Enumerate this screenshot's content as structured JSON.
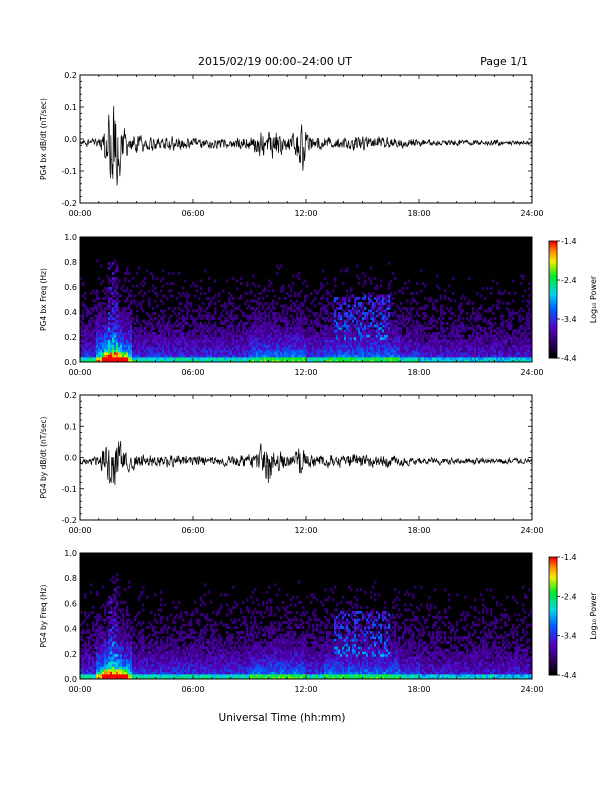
{
  "header": {
    "title": "2015/02/19  00:00–24:00 UT",
    "page": "Page 1/1"
  },
  "footer": {
    "xlabel": "Universal Time (hh:mm)"
  },
  "chart_data": [
    {
      "type": "line",
      "ylabel": "PG4 bx dB/dt (nT/sec)",
      "xlim": [
        0,
        24
      ],
      "ylim": [
        -0.2,
        0.2
      ],
      "xticks": [
        "00:00",
        "06:00",
        "12:00",
        "18:00",
        "24:00"
      ],
      "yticks": [
        "-0.2",
        "-0.1",
        "0.0",
        "0.1",
        "0.2"
      ],
      "envelope": {
        "x": [
          0,
          1,
          1.3,
          1.6,
          1.8,
          2.0,
          2.3,
          2.8,
          4,
          6,
          8,
          9.2,
          9.6,
          10,
          10.4,
          11,
          11.4,
          11.7,
          12,
          13,
          15,
          16,
          18,
          20,
          22,
          24
        ],
        "max": [
          0.012,
          0.02,
          0.06,
          0.12,
          0.19,
          0.12,
          0.06,
          0.035,
          0.03,
          0.025,
          0.02,
          0.03,
          0.05,
          0.07,
          0.06,
          0.025,
          0.04,
          0.12,
          0.04,
          0.025,
          0.03,
          0.025,
          0.015,
          0.012,
          0.012,
          0.01
        ],
        "min": [
          -0.012,
          -0.02,
          -0.08,
          -0.16,
          -0.2,
          -0.15,
          -0.07,
          -0.04,
          -0.03,
          -0.025,
          -0.02,
          -0.03,
          -0.06,
          -0.09,
          -0.06,
          -0.025,
          -0.04,
          -0.16,
          -0.04,
          -0.025,
          -0.03,
          -0.025,
          -0.015,
          -0.012,
          -0.012,
          -0.01
        ]
      }
    },
    {
      "type": "heatmap",
      "ylabel": "PG4 bx Freq (Hz)",
      "xlim": [
        0,
        24
      ],
      "ylim": [
        0,
        1.0
      ],
      "xticks": [
        "00:00",
        "06:00",
        "12:00",
        "18:00",
        "24:00"
      ],
      "yticks": [
        "0.0",
        "0.2",
        "0.4",
        "0.6",
        "0.8",
        "1.0"
      ],
      "colorbar": {
        "label": "Log₁₀ Power",
        "min": -4.4,
        "max": -1.4,
        "ticks": [
          "-1.4",
          "-2.4",
          "-3.4",
          "-4.4"
        ]
      }
    },
    {
      "type": "line",
      "ylabel": "PG4 by dB/dt (nT/sec)",
      "xlim": [
        0,
        24
      ],
      "ylim": [
        -0.2,
        0.2
      ],
      "xticks": [
        "00:00",
        "06:00",
        "12:00",
        "18:00",
        "24:00"
      ],
      "yticks": [
        "-0.2",
        "-0.1",
        "0.0",
        "0.1",
        "0.2"
      ],
      "envelope": {
        "x": [
          0,
          1,
          1.3,
          1.6,
          1.8,
          2.0,
          2.3,
          2.8,
          4,
          6,
          8,
          9.2,
          9.6,
          10,
          10.4,
          11,
          11.4,
          11.7,
          12,
          13,
          15,
          16,
          18,
          20,
          22,
          24
        ],
        "max": [
          0.012,
          0.02,
          0.06,
          0.12,
          0.14,
          0.1,
          0.05,
          0.03,
          0.025,
          0.022,
          0.02,
          0.03,
          0.06,
          0.08,
          0.06,
          0.025,
          0.03,
          0.06,
          0.03,
          0.025,
          0.03,
          0.025,
          0.015,
          0.012,
          0.012,
          0.01
        ],
        "min": [
          -0.012,
          -0.02,
          -0.06,
          -0.11,
          -0.13,
          -0.1,
          -0.05,
          -0.03,
          -0.025,
          -0.022,
          -0.02,
          -0.03,
          -0.05,
          -0.12,
          -0.05,
          -0.025,
          -0.03,
          -0.06,
          -0.03,
          -0.025,
          -0.03,
          -0.025,
          -0.015,
          -0.012,
          -0.012,
          -0.01
        ]
      }
    },
    {
      "type": "heatmap",
      "ylabel": "PG4 by Freq (Hz)",
      "xlim": [
        0,
        24
      ],
      "ylim": [
        0,
        1.0
      ],
      "xticks": [
        "00:00",
        "06:00",
        "12:00",
        "18:00",
        "24:00"
      ],
      "yticks": [
        "0.0",
        "0.2",
        "0.4",
        "0.6",
        "0.8",
        "1.0"
      ],
      "colorbar": {
        "label": "Log₁₀ Power",
        "min": -4.4,
        "max": -1.4,
        "ticks": [
          "-1.4",
          "-2.4",
          "-3.4",
          "-4.4"
        ]
      }
    }
  ]
}
